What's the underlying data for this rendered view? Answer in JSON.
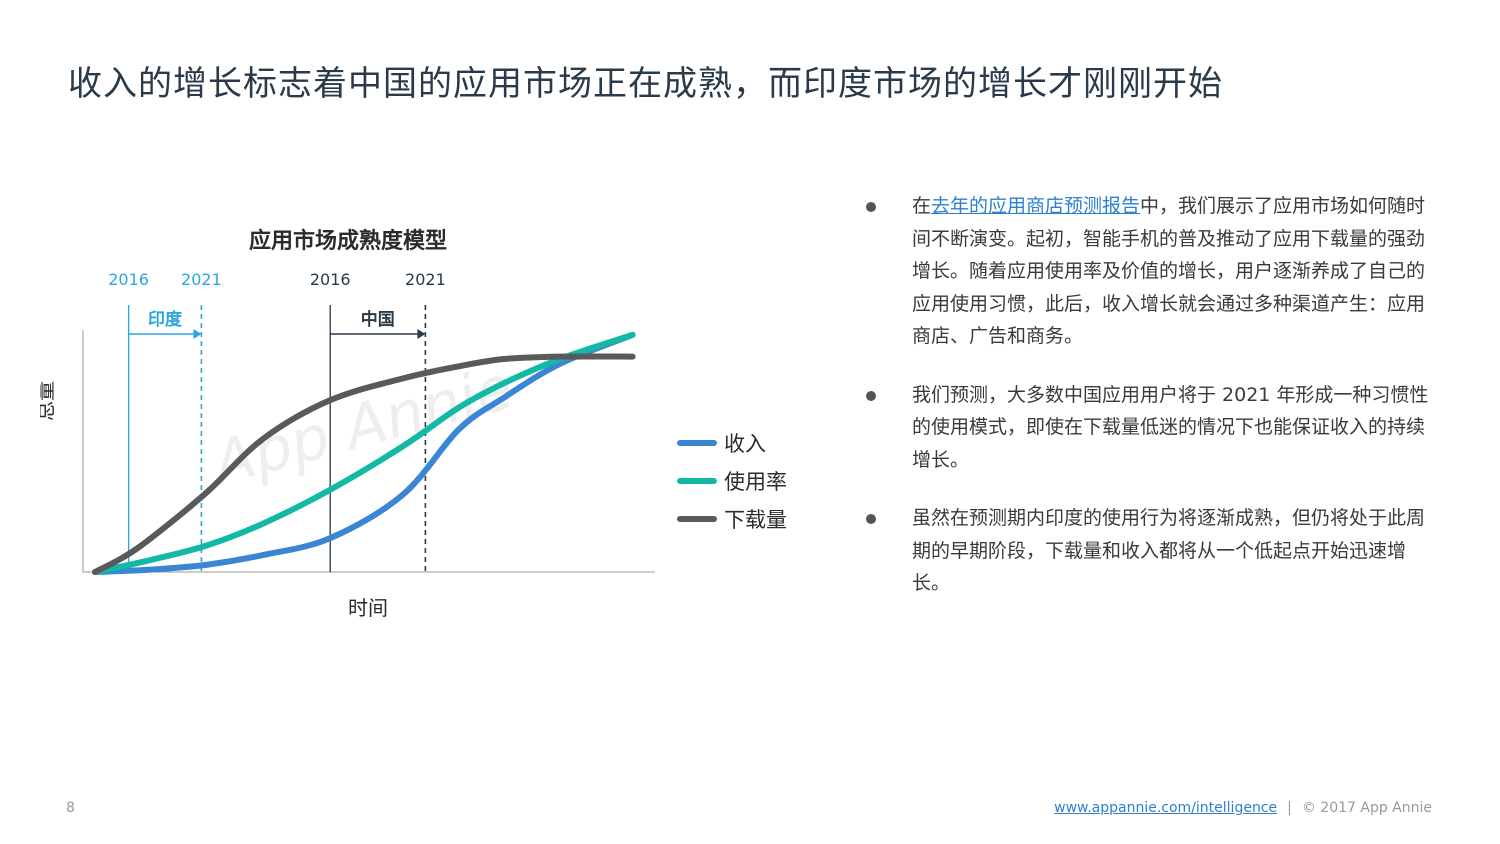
{
  "title": "收入的增长标志着中国的应用市场正在成熟，而印度市场的增长才刚刚开始",
  "chart_data": {
    "type": "line",
    "title": "应用市场成熟度模型",
    "xlabel": "时间",
    "ylabel": "总量",
    "watermark": "App Annie",
    "xlim": [
      0,
      100
    ],
    "ylim": [
      0,
      100
    ],
    "markers": [
      {
        "group": "印度",
        "start": "2016",
        "end": "2021",
        "start_x": 6,
        "end_x": 19,
        "color": "#2ba6de"
      },
      {
        "group": "中国",
        "start": "2016",
        "end": "2021",
        "start_x": 42,
        "end_x": 59,
        "color": "#2a3a4a"
      }
    ],
    "legend": [
      "收入",
      "使用率",
      "下载量"
    ],
    "series": [
      {
        "name": "收入",
        "color": "#3a86d4",
        "x": [
          0,
          10,
          20,
          30,
          42,
          55,
          65,
          73,
          83,
          96
        ],
        "y": [
          0,
          1,
          3,
          7,
          14,
          32,
          59,
          72,
          86,
          98
        ]
      },
      {
        "name": "使用率",
        "color": "#14b8a6",
        "x": [
          0,
          10,
          20,
          30,
          42,
          55,
          65,
          73,
          83,
          96
        ],
        "y": [
          0,
          5,
          11,
          20,
          34,
          52,
          68,
          78,
          88,
          98
        ]
      },
      {
        "name": "下载量",
        "color": "#5a5a5a",
        "x": [
          0,
          5,
          10,
          20,
          30,
          42,
          55,
          65,
          73,
          83,
          96
        ],
        "y": [
          0,
          6,
          14,
          33,
          55,
          71,
          80,
          85,
          88,
          89,
          89
        ]
      }
    ]
  },
  "bullets": [
    {
      "before": "在",
      "link": "去年的应用商店预测报告",
      "after": "中，我们展示了应用市场如何随时间不断演变。起初，智能手机的普及推动了应用下载量的强劲增长。随着应用使用率及价值的增长，用户逐渐养成了自己的应用使用习惯，此后，收入增长就会通过多种渠道产生：应用商店、广告和商务。"
    },
    {
      "text": "我们预测，大多数中国应用用户将于 2021 年形成一种习惯性的使用模式，即使在下载量低迷的情况下也能保证收入的持续增长。"
    },
    {
      "text": "虽然在预测期内印度的使用行为将逐渐成熟，但仍将处于此周期的早期阶段，下载量和收入都将从一个低起点开始迅速增长。"
    }
  ],
  "footer": {
    "page": "8",
    "url": "www.appannie.com/intelligence",
    "separator": "|",
    "copyright": "© 2017 App Annie"
  }
}
